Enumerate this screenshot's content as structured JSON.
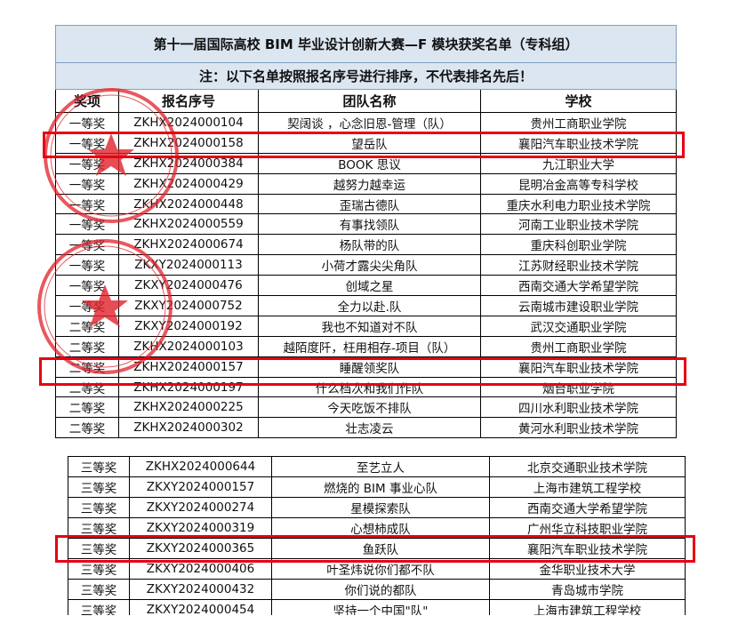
{
  "title": "第十一届国际高校 BIM 毕业设计创新大赛—F 模块获奖名单（专科组）",
  "note": "注：以下名单按照报名序号进行排序，不代表排名先后！",
  "headers": [
    "奖项",
    "报名序号",
    "团队名称",
    "学校"
  ],
  "table1": {
    "rows": [
      [
        "一等奖",
        "ZKHX2024000104",
        "契阔谈 ，心念旧恩-管理（队）",
        "贵州工商职业学院"
      ],
      [
        "一等奖",
        "ZKHX2024000158",
        "望岳队",
        "襄阳汽车职业技术学院"
      ],
      [
        "一等奖",
        "ZKHX2024000384",
        "BOOK 思议",
        "九江职业大学"
      ],
      [
        "一等奖",
        "ZKHX2024000429",
        "越努力越幸运",
        "昆明冶金高等专科学校"
      ],
      [
        "一等奖",
        "ZKHX2024000448",
        "歪瑞古德队",
        "重庆水利电力职业技术学院"
      ],
      [
        "一等奖",
        "ZKHX2024000559",
        "有事找领队",
        "河南工业职业技术学院"
      ],
      [
        "一等奖",
        "ZKHX2024000674",
        "杨队带的队",
        "重庆科创职业学院"
      ],
      [
        "一等奖",
        "ZKXY2024000113",
        "小荷才露尖尖角队",
        "江苏财经职业技术学院"
      ],
      [
        "一等奖",
        "ZKXY2024000476",
        "创域之星",
        "西南交通大学希望学院"
      ],
      [
        "一等奖",
        "ZKXY2024000752",
        "全力以赴.队",
        "云南城市建设职业学院"
      ],
      [
        "二等奖",
        "ZKXY2024000192",
        "我也不知道对不队",
        "武汉交通职业学院"
      ],
      [
        "二等奖",
        "ZKHX2024000103",
        "越陌度阡，枉用相存-项目（队）",
        "贵州工商职业学院"
      ],
      [
        "二等奖",
        "ZKHX2024000157",
        "睡醒领奖队",
        "襄阳汽车职业技术学院"
      ],
      [
        "二等奖",
        "ZKHX2024000197",
        "什么档次和我们作队",
        "烟台职业学院"
      ],
      [
        "二等奖",
        "ZKHX2024000225",
        "今天吃饭不排队",
        "四川水利职业技术学院"
      ],
      [
        "二等奖",
        "ZKHX2024000302",
        "壮志凌云",
        "黄河水利职业技术学院"
      ]
    ]
  },
  "table2": {
    "rows": [
      [
        "三等奖",
        "ZKHX2024000644",
        "至艺立人",
        "北京交通职业技术学院"
      ],
      [
        "三等奖",
        "ZKXY2024000157",
        "燃烧的 BIM 事业心队",
        "上海市建筑工程学校"
      ],
      [
        "三等奖",
        "ZKXY2024000274",
        "星模探索队",
        "西南交通大学希望学院"
      ],
      [
        "三等奖",
        "ZKXY2024000319",
        "心想柿成队",
        "广州华立科技职业学院"
      ],
      [
        "三等奖",
        "ZKXY2024000365",
        "鱼跃队",
        "襄阳汽车职业技术学院"
      ],
      [
        "三等奖",
        "ZKXY2024000406",
        "叶圣炜说你们都不队",
        "金华职业技术大学"
      ],
      [
        "三等奖",
        "ZKXY2024000432",
        "你们说的都队",
        "青岛城市学院"
      ],
      [
        "三等奖",
        "ZKXY2024000454",
        "坚持一个中国\"队\"",
        "上海市建筑工程学校"
      ]
    ]
  }
}
